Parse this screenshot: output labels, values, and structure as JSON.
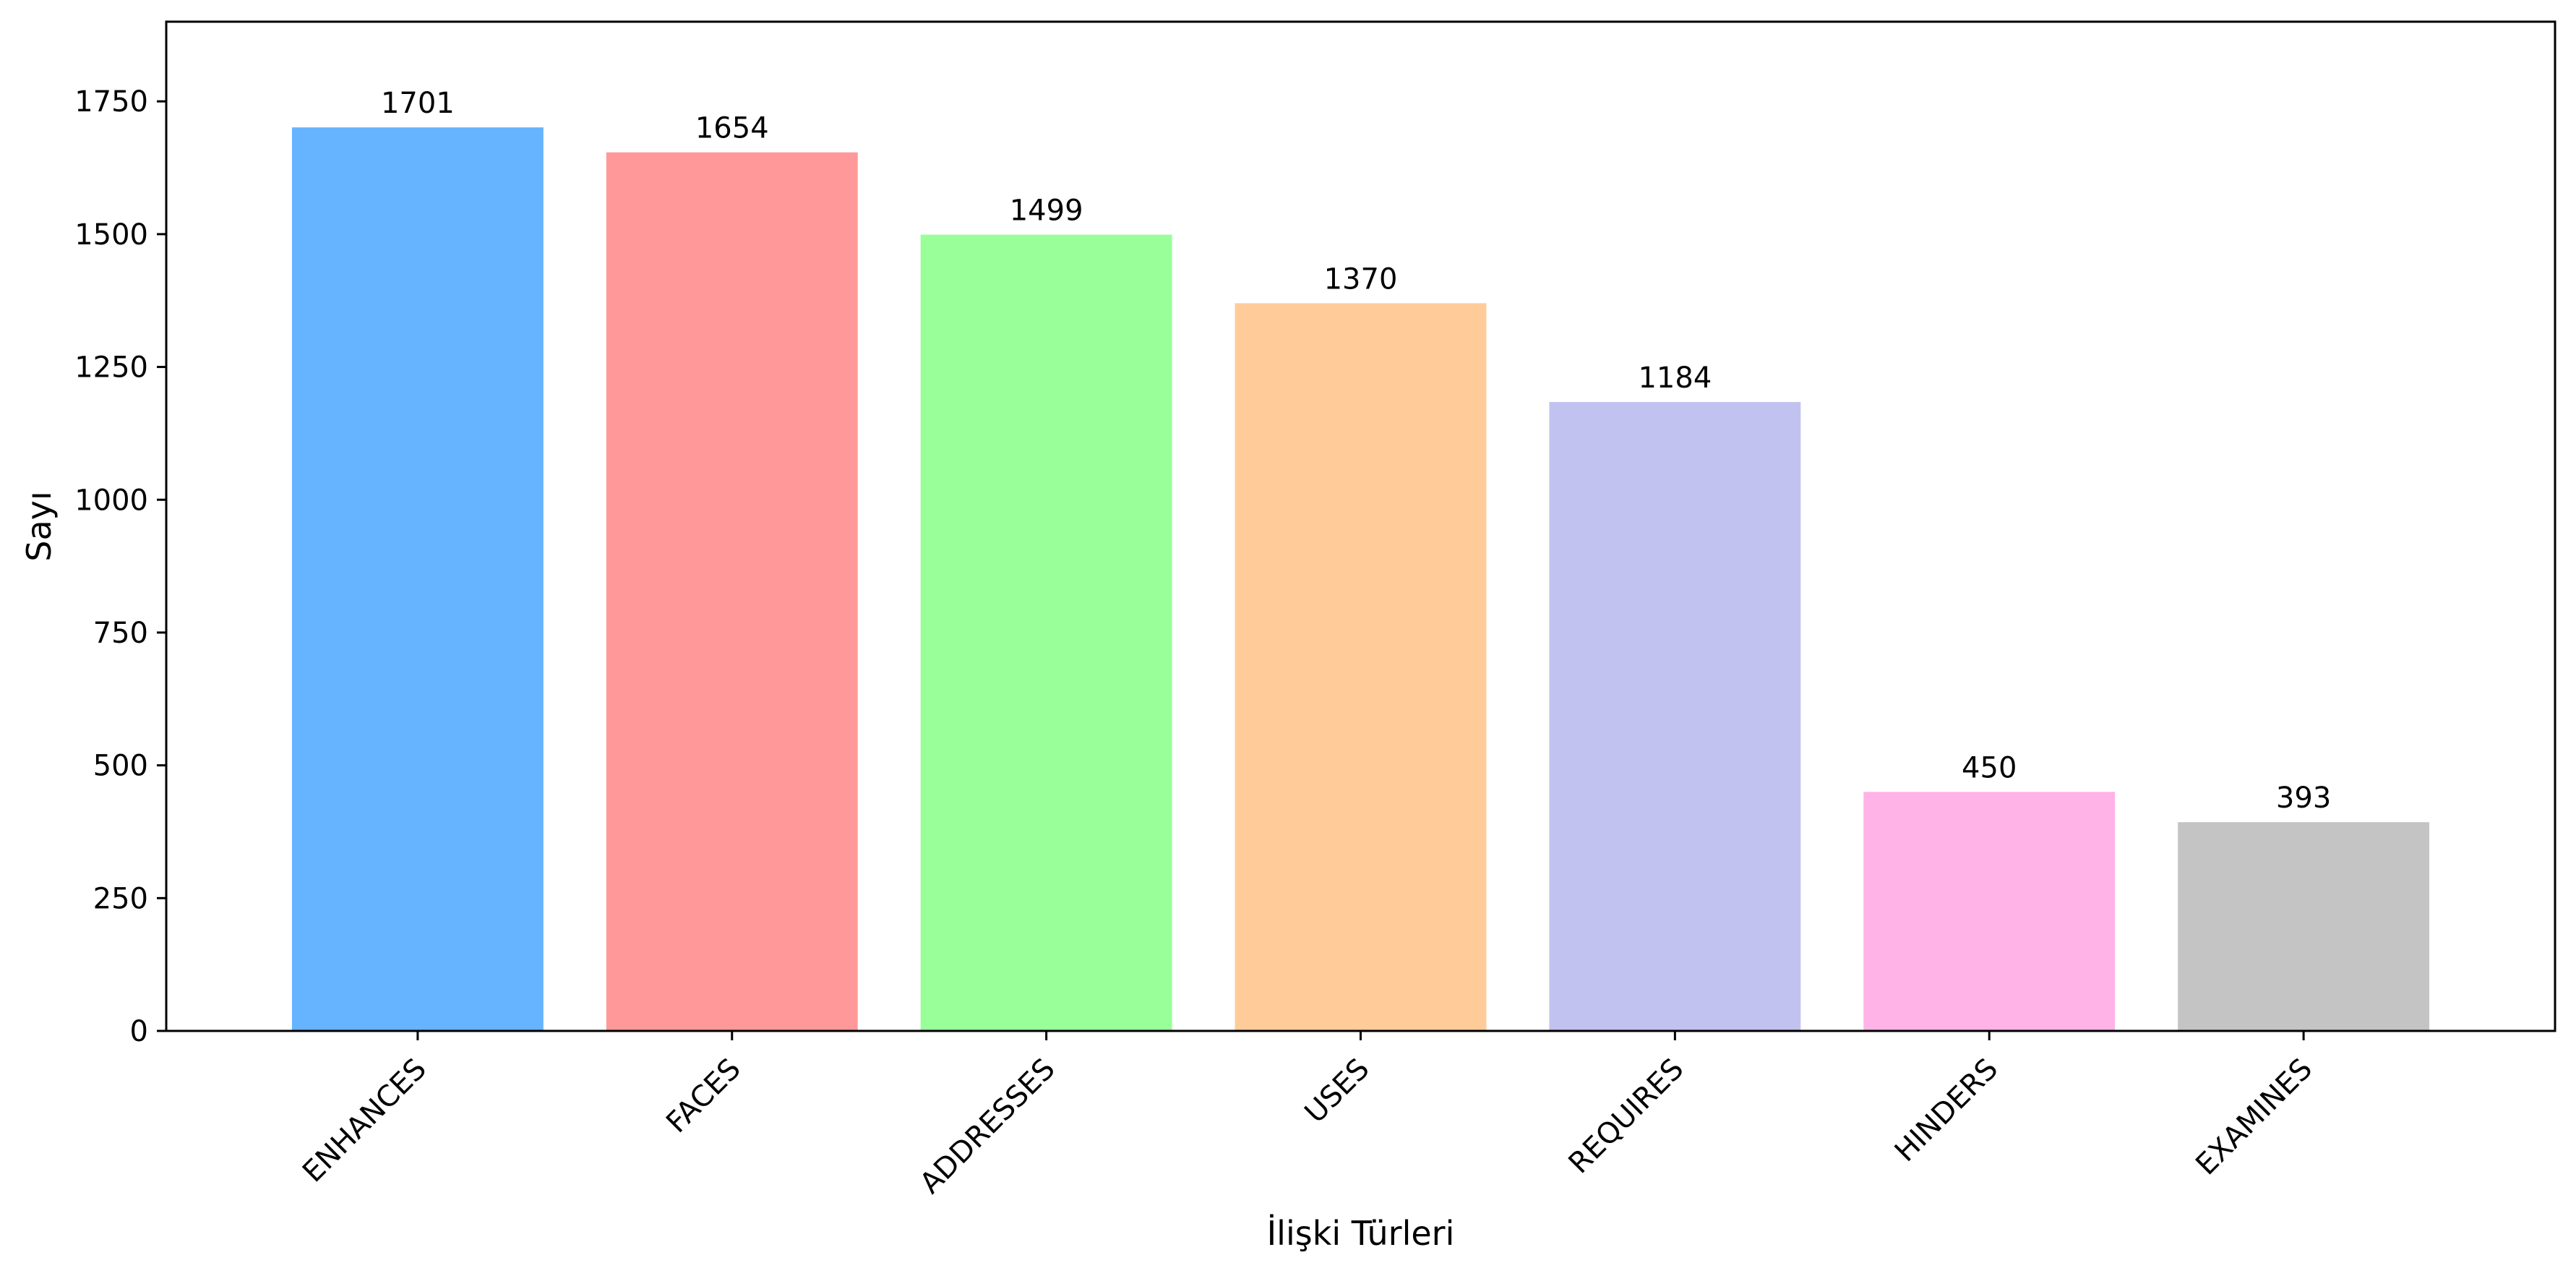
{
  "chart_data": {
    "type": "bar",
    "categories": [
      "ENHANCES",
      "FACES",
      "ADDRESSES",
      "USES",
      "REQUIRES",
      "HINDERS",
      "EXAMINES"
    ],
    "values": [
      1701,
      1654,
      1499,
      1370,
      1184,
      450,
      393
    ],
    "value_labels": [
      "1701",
      "1654",
      "1499",
      "1370",
      "1184",
      "450",
      "393"
    ],
    "colors": [
      "#66b3ff",
      "#ff9999",
      "#99ff99",
      "#ffcc99",
      "#c2c2f0",
      "#ffb3e6",
      "#c4c4c4"
    ],
    "title": "",
    "xlabel": "İlişki Türleri",
    "ylabel": "Sayı",
    "ylim": [
      0,
      1900
    ],
    "yticks": [
      0,
      250,
      500,
      750,
      1000,
      1250,
      1500,
      1750
    ],
    "ytick_labels": [
      "0",
      "250",
      "500",
      "750",
      "1000",
      "1250",
      "1500",
      "1750"
    ],
    "grid": false,
    "legend": "none"
  }
}
